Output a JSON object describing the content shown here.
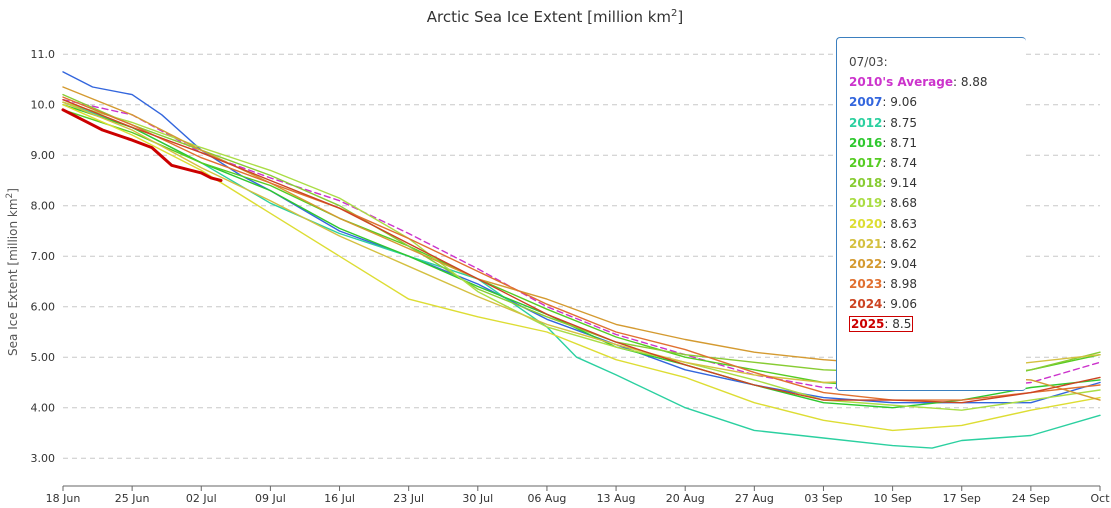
{
  "chart_data": {
    "type": "line",
    "title": "Arctic Sea Ice Extent [million km",
    "title_sup": "2",
    "title_end": "]",
    "ylabel": "Sea Ice Extent [million km",
    "ylabel_sup": "2",
    "ylabel_end": "]",
    "xlabel": "",
    "ylim": [
      2.45,
      11.4
    ],
    "xlim": [
      0,
      105
    ],
    "grid": true,
    "y_ticks": [
      "3.00",
      "4.00",
      "5.00",
      "6.00",
      "7.00",
      "8.00",
      "9.00",
      "10.0",
      "11.0"
    ],
    "x_ticks": [
      {
        "x": 0,
        "label": "18 Jun"
      },
      {
        "x": 7,
        "label": "25 Jun"
      },
      {
        "x": 14,
        "label": "02 Jul"
      },
      {
        "x": 21,
        "label": "09 Jul"
      },
      {
        "x": 28,
        "label": "16 Jul"
      },
      {
        "x": 35,
        "label": "23 Jul"
      },
      {
        "x": 42,
        "label": "30 Jul"
      },
      {
        "x": 49,
        "label": "06 Aug"
      },
      {
        "x": 56,
        "label": "13 Aug"
      },
      {
        "x": 63,
        "label": "20 Aug"
      },
      {
        "x": 70,
        "label": "27 Aug"
      },
      {
        "x": 77,
        "label": "03 Sep"
      },
      {
        "x": 84,
        "label": "10 Sep"
      },
      {
        "x": 91,
        "label": "17 Sep"
      },
      {
        "x": 98,
        "label": "24 Sep"
      },
      {
        "x": 105,
        "label": "Oct"
      }
    ],
    "series": [
      {
        "name": "2010's Average",
        "color": "#cc33cc",
        "dashed": true,
        "x": [
          0,
          7,
          14,
          21,
          28,
          35,
          42,
          49,
          56,
          63,
          70,
          77,
          84,
          91,
          98,
          105
        ],
        "y": [
          10.1,
          9.8,
          9.05,
          8.55,
          8.1,
          7.45,
          6.75,
          6.0,
          5.45,
          5.05,
          4.65,
          4.4,
          4.35,
          4.35,
          4.5,
          4.9
        ]
      },
      {
        "name": "2007",
        "color": "#3366dd",
        "x": [
          0,
          3,
          7,
          10,
          14,
          18,
          21,
          28,
          35,
          42,
          49,
          56,
          63,
          70,
          77,
          84,
          91,
          98,
          105
        ],
        "y": [
          10.65,
          10.35,
          10.2,
          9.8,
          9.1,
          8.6,
          8.3,
          7.5,
          7.0,
          6.45,
          5.75,
          5.25,
          4.75,
          4.45,
          4.2,
          4.1,
          4.1,
          4.1,
          4.5
        ]
      },
      {
        "name": "2012",
        "color": "#2bd0a0",
        "x": [
          0,
          7,
          14,
          21,
          28,
          35,
          42,
          49,
          52,
          56,
          63,
          70,
          77,
          84,
          88,
          91,
          98,
          105
        ],
        "y": [
          10.05,
          9.55,
          8.85,
          8.05,
          7.45,
          7.0,
          6.55,
          5.6,
          5.0,
          4.65,
          4.0,
          3.55,
          3.4,
          3.25,
          3.2,
          3.35,
          3.45,
          3.85
        ]
      },
      {
        "name": "2016",
        "color": "#2ec82e",
        "x": [
          0,
          7,
          14,
          21,
          28,
          35,
          42,
          49,
          56,
          63,
          70,
          77,
          84,
          91,
          98,
          105
        ],
        "y": [
          10.0,
          9.55,
          8.85,
          8.3,
          7.55,
          7.0,
          6.4,
          5.85,
          5.2,
          4.85,
          4.45,
          4.1,
          4.0,
          4.15,
          4.4,
          4.55
        ]
      },
      {
        "name": "2017",
        "color": "#55cc22",
        "x": [
          0,
          7,
          14,
          21,
          28,
          35,
          42,
          49,
          56,
          63,
          70,
          77,
          84,
          91,
          98,
          105
        ],
        "y": [
          9.9,
          9.45,
          8.85,
          8.4,
          7.75,
          7.2,
          6.55,
          5.95,
          5.4,
          5.0,
          4.75,
          4.5,
          4.4,
          4.45,
          4.75,
          5.05
        ]
      },
      {
        "name": "2018",
        "color": "#88cc33",
        "x": [
          0,
          7,
          14,
          21,
          28,
          35,
          42,
          49,
          56,
          63,
          70,
          77,
          84,
          91,
          98,
          105
        ],
        "y": [
          10.2,
          9.6,
          9.1,
          8.6,
          8.0,
          7.2,
          6.35,
          5.8,
          5.3,
          5.05,
          4.9,
          4.75,
          4.7,
          4.6,
          4.75,
          5.1
        ]
      },
      {
        "name": "2019",
        "color": "#aadd44",
        "x": [
          0,
          7,
          14,
          21,
          28,
          35,
          42,
          49,
          56,
          63,
          70,
          77,
          84,
          91,
          98,
          105
        ],
        "y": [
          10.05,
          9.65,
          9.15,
          8.7,
          8.15,
          7.35,
          6.3,
          5.6,
          5.2,
          4.9,
          4.55,
          4.15,
          4.05,
          3.95,
          4.15,
          4.35
        ]
      },
      {
        "name": "2020",
        "color": "#dddd33",
        "x": [
          0,
          7,
          14,
          21,
          28,
          35,
          42,
          49,
          56,
          63,
          70,
          77,
          84,
          91,
          98,
          105
        ],
        "y": [
          10.0,
          9.4,
          8.7,
          7.85,
          7.0,
          6.15,
          5.8,
          5.5,
          4.95,
          4.6,
          4.1,
          3.75,
          3.55,
          3.65,
          3.95,
          4.2
        ]
      },
      {
        "name": "2021",
        "color": "#d4c040",
        "x": [
          0,
          7,
          14,
          21,
          28,
          35,
          42,
          49,
          56,
          63,
          70,
          77,
          84,
          91,
          98,
          105
        ],
        "y": [
          10.05,
          9.5,
          8.75,
          8.1,
          7.4,
          6.8,
          6.2,
          5.65,
          5.25,
          4.9,
          4.65,
          4.5,
          4.55,
          4.75,
          4.9,
          5.05
        ]
      },
      {
        "name": "2022",
        "color": "#d49a30",
        "x": [
          0,
          7,
          14,
          21,
          28,
          35,
          42,
          49,
          56,
          63,
          70,
          77,
          84,
          91,
          98,
          105
        ],
        "y": [
          10.35,
          9.8,
          9.1,
          8.45,
          7.75,
          7.15,
          6.55,
          6.15,
          5.65,
          5.35,
          5.1,
          4.95,
          4.85,
          4.6,
          4.55,
          4.15
        ]
      },
      {
        "name": "2023",
        "color": "#e07030",
        "x": [
          0,
          7,
          14,
          21,
          28,
          35,
          42,
          49,
          56,
          63,
          70,
          77,
          84,
          91,
          98,
          105
        ],
        "y": [
          10.15,
          9.6,
          8.95,
          8.45,
          7.95,
          7.35,
          6.7,
          6.05,
          5.5,
          5.15,
          4.7,
          4.3,
          4.15,
          4.15,
          4.3,
          4.45
        ]
      },
      {
        "name": "2024",
        "color": "#cc4422",
        "x": [
          0,
          7,
          14,
          21,
          28,
          35,
          42,
          49,
          56,
          63,
          70,
          77,
          84,
          91,
          98,
          105
        ],
        "y": [
          10.1,
          9.55,
          9.05,
          8.5,
          7.95,
          7.25,
          6.55,
          5.85,
          5.3,
          4.85,
          4.45,
          4.15,
          4.15,
          4.1,
          4.3,
          4.6
        ]
      },
      {
        "name": "2025",
        "color": "#cc0000",
        "bold": true,
        "x": [
          0,
          2,
          4,
          7,
          9,
          11,
          13,
          14,
          15,
          16
        ],
        "y": [
          9.9,
          9.7,
          9.5,
          9.3,
          9.15,
          8.8,
          8.7,
          8.65,
          8.55,
          8.5
        ]
      }
    ]
  },
  "tooltip": {
    "date": "07/03:",
    "rows": [
      {
        "name": "2010's Average",
        "value": "8.88",
        "color": "#cc33cc"
      },
      {
        "name": "2007",
        "value": "9.06",
        "color": "#3366dd"
      },
      {
        "name": "2012",
        "value": "8.75",
        "color": "#2bd0a0"
      },
      {
        "name": "2016",
        "value": "8.71",
        "color": "#2ec82e"
      },
      {
        "name": "2017",
        "value": "8.74",
        "color": "#55cc22"
      },
      {
        "name": "2018",
        "value": "9.14",
        "color": "#88cc33"
      },
      {
        "name": "2019",
        "value": "8.68",
        "color": "#aadd44"
      },
      {
        "name": "2020",
        "value": "8.63",
        "color": "#dddd33"
      },
      {
        "name": "2021",
        "value": "8.62",
        "color": "#d4c040"
      },
      {
        "name": "2022",
        "value": "9.04",
        "color": "#d49a30"
      },
      {
        "name": "2023",
        "value": "8.98",
        "color": "#e07030"
      },
      {
        "name": "2024",
        "value": "9.06",
        "color": "#cc4422"
      },
      {
        "name": "2025",
        "value": "8.5",
        "color": "#cc0000",
        "boxed": true
      }
    ]
  }
}
